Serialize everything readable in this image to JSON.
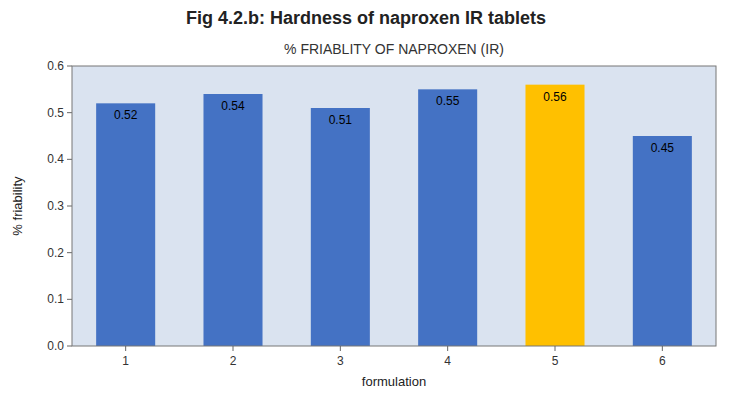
{
  "chart_data": {
    "type": "bar",
    "title": "Fig 4.2.b: Hardness of naproxen IR tablets",
    "subtitle": "% FRIABLITY OF NAPROXEN (IR)",
    "categories": [
      "1",
      "2",
      "3",
      "4",
      "5",
      "6"
    ],
    "values": [
      0.52,
      0.54,
      0.51,
      0.55,
      0.56,
      0.45
    ],
    "colors": [
      "#4472C4",
      "#4472C4",
      "#4472C4",
      "#4472C4",
      "#FFC000",
      "#4472C4"
    ],
    "xlabel": "formulation",
    "ylabel": "% friability",
    "ylim": [
      0,
      0.6
    ],
    "yticks": [
      {
        "value": 0,
        "label": "0.0"
      },
      0.1,
      0.2,
      0.3,
      0.4,
      0.5,
      0.6
    ],
    "grid": false,
    "data_labels": true
  }
}
